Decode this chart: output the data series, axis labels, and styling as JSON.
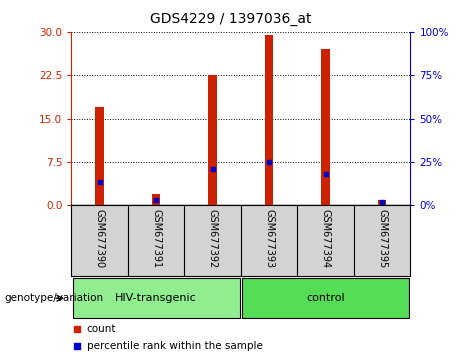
{
  "title": "GDS4229 / 1397036_at",
  "samples": [
    "GSM677390",
    "GSM677391",
    "GSM677392",
    "GSM677393",
    "GSM677394",
    "GSM677395"
  ],
  "red_values": [
    17,
    2,
    22.5,
    29.5,
    27,
    1
  ],
  "blue_values_left": [
    4.0,
    1.0,
    6.2,
    7.5,
    5.5,
    0.5
  ],
  "left_ylim": [
    0,
    30
  ],
  "right_ylim": [
    0,
    100
  ],
  "left_yticks": [
    0,
    7.5,
    15,
    22.5,
    30
  ],
  "right_yticks": [
    0,
    25,
    50,
    75,
    100
  ],
  "left_color": "#cc2200",
  "right_color": "#0000cc",
  "bar_color": "#cc2200",
  "dot_color": "#0000cc",
  "groups": [
    {
      "label": "HIV-transgenic",
      "start": 0,
      "end": 3,
      "color": "#90ee90"
    },
    {
      "label": "control",
      "start": 3,
      "end": 6,
      "color": "#55dd55"
    }
  ],
  "group_label": "genotype/variation",
  "legend_red": "count",
  "legend_blue": "percentile rank within the sample",
  "bg_color": "#ffffff",
  "plot_bg": "#ffffff",
  "tick_label_area_color": "#d3d3d3",
  "bar_width": 0.15,
  "fig_width": 4.61,
  "fig_height": 3.54,
  "dpi": 100
}
